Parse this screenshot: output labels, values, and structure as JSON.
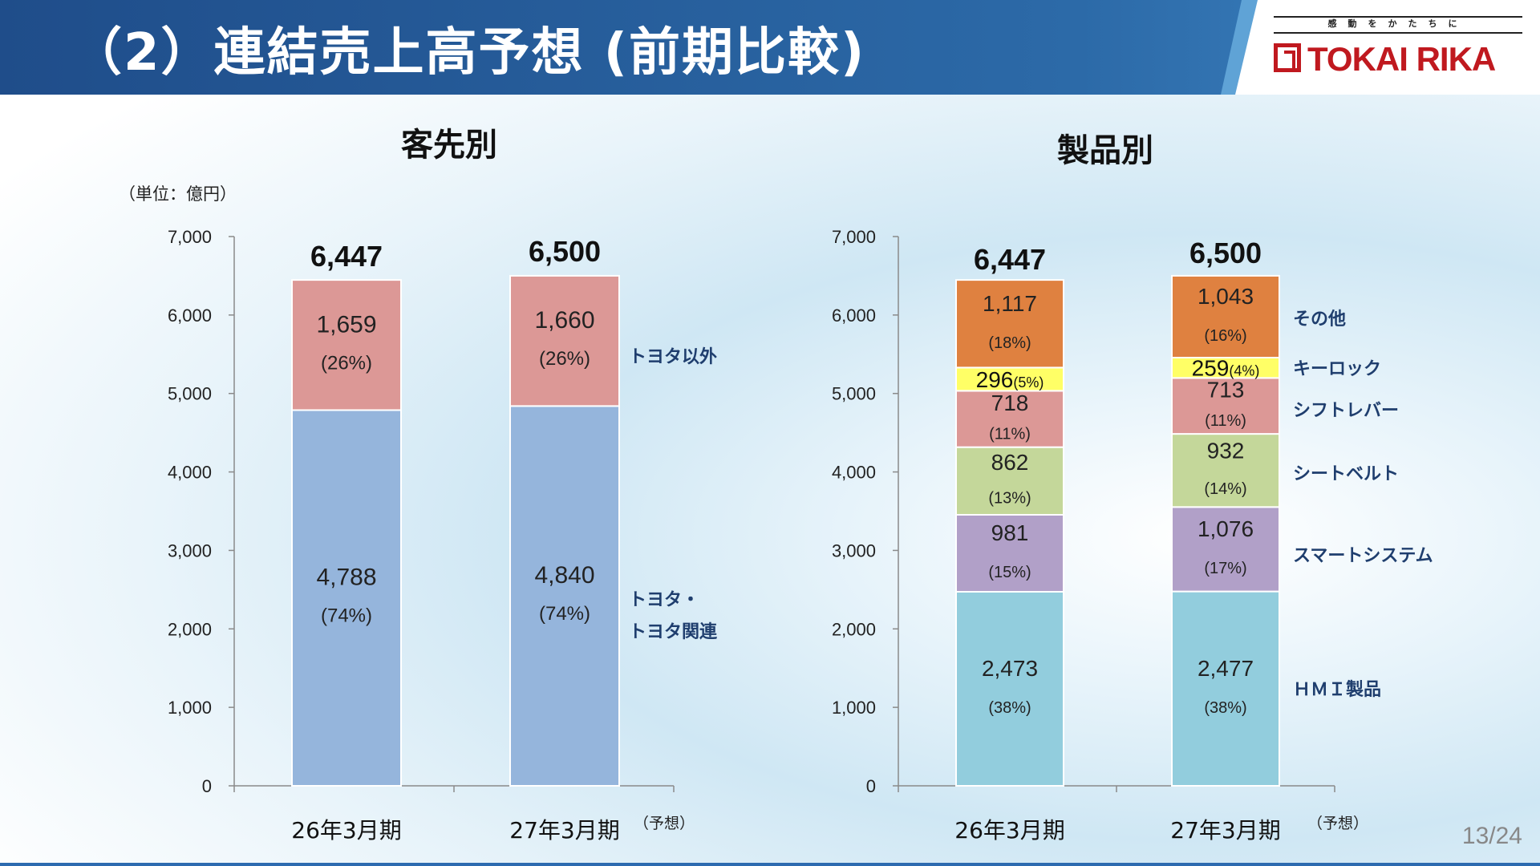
{
  "header": {
    "title": "（2）連結売上高予想 (前期比較)",
    "logo_tagline": "感動をかたちに",
    "logo_name": "TOKAI RIKA"
  },
  "left": {
    "section_title": "客先別",
    "unit": "（単位：億円）"
  },
  "right": {
    "section_title": "製品別"
  },
  "page_number": "13/24",
  "colors": {
    "header_blue": "#1f4d8a",
    "toyota_other": "#dc9896",
    "toyota": "#95b5dc",
    "other": "#df8140",
    "key_lock": "#ffff66",
    "shift_lever": "#dc9896",
    "seat_belt": "#c4d79a",
    "smart_system": "#b1a0c8",
    "hmi": "#92cddd",
    "legend_text": "#1f3e6e"
  },
  "chart_data": [
    {
      "type": "bar",
      "stacked": true,
      "title": "客先別",
      "ylim": [
        0,
        7000
      ],
      "yticks": [
        "0",
        "1,000",
        "2,000",
        "3,000",
        "4,000",
        "5,000",
        "6,000",
        "7,000"
      ],
      "categories": [
        "26年3月期",
        "27年3月期"
      ],
      "category_notes": [
        "",
        "（予想）"
      ],
      "totals": [
        "6,447",
        "6,500"
      ],
      "series": [
        {
          "name": "トヨタ・\nトヨタ関連",
          "color_key": "toyota",
          "values": [
            4788,
            4840
          ],
          "labels": [
            "4,788",
            "4,840"
          ],
          "pcts": [
            "(74%)",
            "(74%)"
          ]
        },
        {
          "name": "トヨタ以外",
          "color_key": "toyota_other",
          "values": [
            1659,
            1660
          ],
          "labels": [
            "1,659",
            "1,660"
          ],
          "pcts": [
            "(26%)",
            "(26%)"
          ]
        }
      ]
    },
    {
      "type": "bar",
      "stacked": true,
      "title": "製品別",
      "ylim": [
        0,
        7000
      ],
      "yticks": [
        "0",
        "1,000",
        "2,000",
        "3,000",
        "4,000",
        "5,000",
        "6,000",
        "7,000"
      ],
      "categories": [
        "26年3月期",
        "27年3月期"
      ],
      "category_notes": [
        "",
        "（予想）"
      ],
      "totals": [
        "6,447",
        "6,500"
      ],
      "series": [
        {
          "name": "ＨＭＩ製品",
          "color_key": "hmi",
          "values": [
            2473,
            2477
          ],
          "labels": [
            "2,473",
            "2,477"
          ],
          "pcts": [
            "(38%)",
            "(38%)"
          ]
        },
        {
          "name": "スマートシステム",
          "color_key": "smart_system",
          "values": [
            981,
            1076
          ],
          "labels": [
            "981",
            "1,076"
          ],
          "pcts": [
            "(15%)",
            "(17%)"
          ]
        },
        {
          "name": "シートベルト",
          "color_key": "seat_belt",
          "values": [
            862,
            932
          ],
          "labels": [
            "862",
            "932"
          ],
          "pcts": [
            "(13%)",
            "(14%)"
          ]
        },
        {
          "name": "シフトレバー",
          "color_key": "shift_lever",
          "values": [
            718,
            713
          ],
          "labels": [
            "718",
            "713"
          ],
          "pcts": [
            "(11%)",
            "(11%)"
          ]
        },
        {
          "name": "キーロック",
          "color_key": "key_lock",
          "values": [
            296,
            259
          ],
          "labels": [
            "296",
            "259"
          ],
          "pcts": [
            "(5%)",
            "(4%)"
          ]
        },
        {
          "name": "その他",
          "color_key": "other",
          "values": [
            1117,
            1043
          ],
          "labels": [
            "1,117",
            "1,043"
          ],
          "pcts": [
            "(18%)",
            "(16%)"
          ]
        }
      ]
    }
  ]
}
